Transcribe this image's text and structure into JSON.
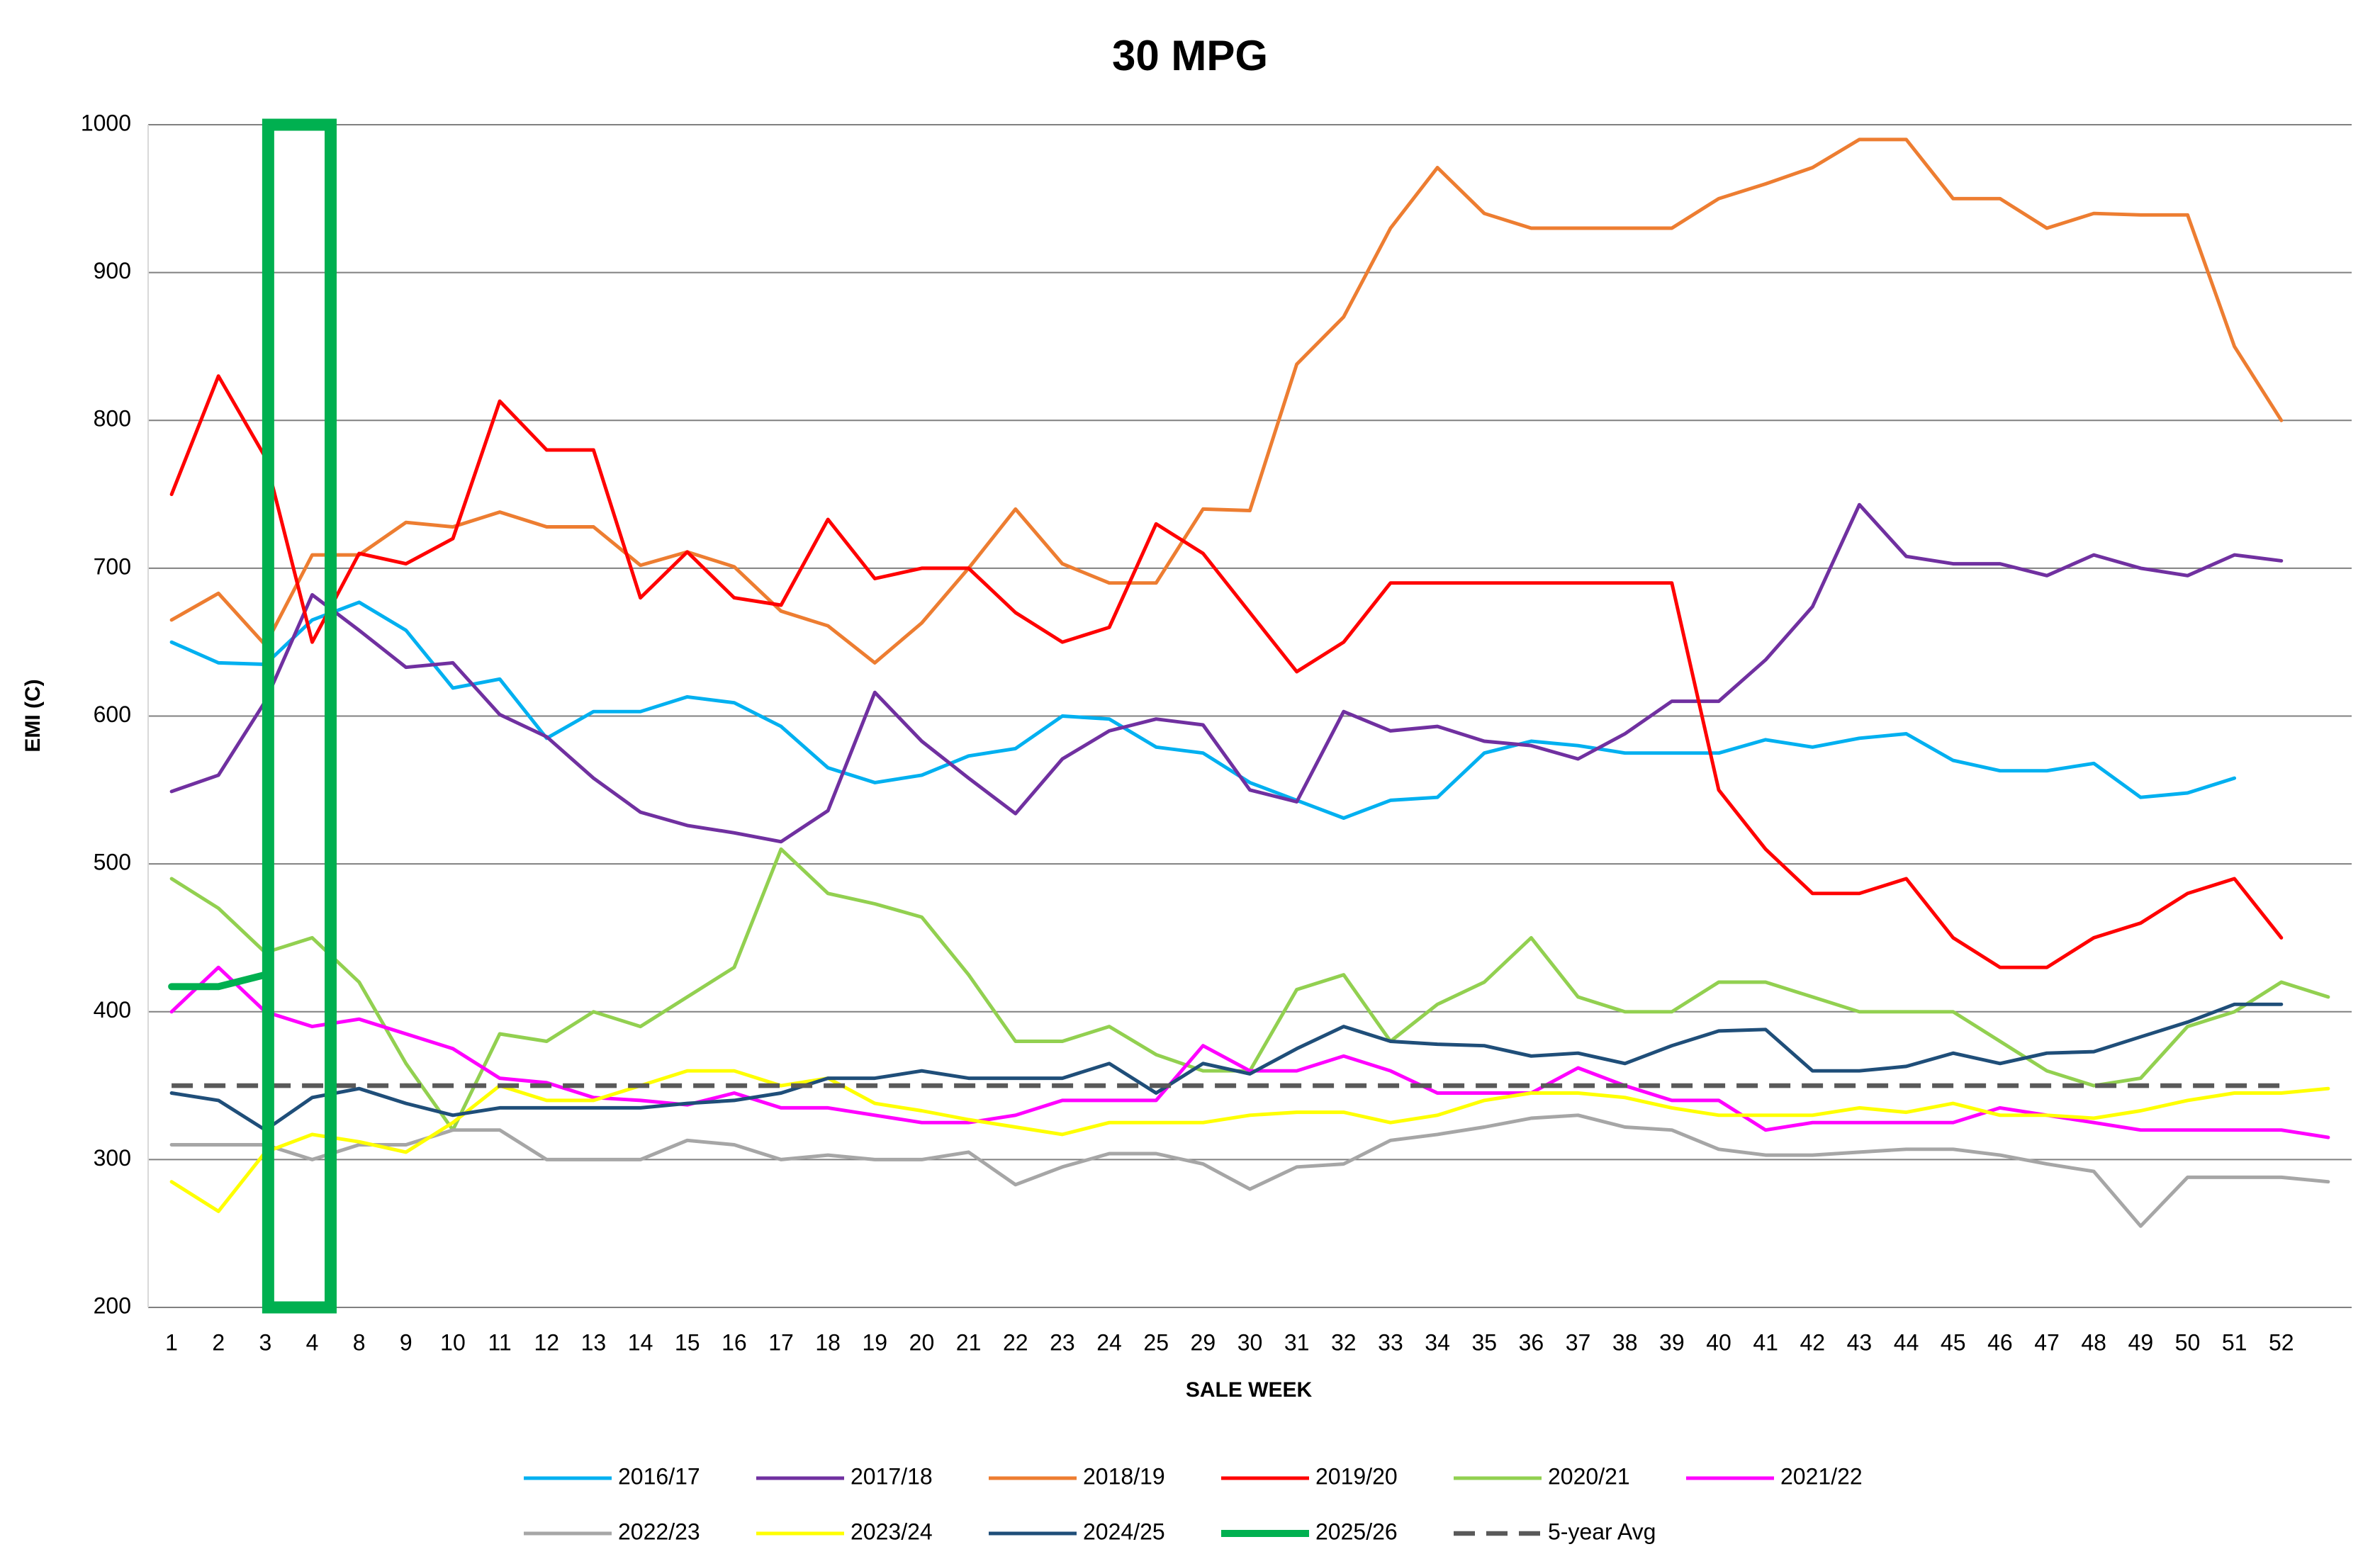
{
  "chart_data": {
    "type": "line",
    "title": "30 MPG",
    "x_label": "SALE WEEK",
    "y_label": "EMI (C)",
    "categories": [
      "1",
      "2",
      "3",
      "4",
      "8",
      "9",
      "10",
      "11",
      "12",
      "13",
      "14",
      "15",
      "16",
      "17",
      "18",
      "19",
      "20",
      "21",
      "22",
      "23",
      "24",
      "25",
      "29",
      "30",
      "31",
      "32",
      "33",
      "34",
      "35",
      "36",
      "37",
      "38",
      "39",
      "40",
      "41",
      "42",
      "43",
      "44",
      "45",
      "46",
      "47",
      "48",
      "49",
      "50",
      "51",
      "52",
      null
    ],
    "ylim": [
      200,
      1000
    ],
    "yticks": [
      200,
      300,
      400,
      500,
      600,
      700,
      800,
      900,
      1000
    ],
    "grid": true,
    "series": [
      {
        "name": "2016/17",
        "color": "#00b0f0",
        "values": [
          650,
          636,
          635,
          665,
          677,
          658,
          619,
          625,
          585,
          603,
          603,
          613,
          609,
          593,
          565,
          555,
          560,
          573,
          578,
          600,
          598,
          579,
          575,
          555,
          543,
          531,
          543,
          545,
          575,
          583,
          580,
          575,
          575,
          575,
          584,
          579,
          585,
          588,
          570,
          563,
          563,
          568,
          545,
          548,
          558,
          null,
          null
        ]
      },
      {
        "name": "2017/18",
        "color": "#7030a0",
        "values": [
          549,
          560,
          610,
          682,
          658,
          633,
          636,
          601,
          586,
          558,
          535,
          526,
          521,
          515,
          536,
          616,
          583,
          558,
          534,
          571,
          590,
          598,
          594,
          550,
          542,
          603,
          590,
          593,
          583,
          580,
          571,
          588,
          610,
          610,
          638,
          674,
          743,
          708,
          703,
          703,
          695,
          709,
          700,
          695,
          709,
          705,
          null
        ]
      },
      {
        "name": "2018/19",
        "color": "#ed7d31",
        "values": [
          665,
          683,
          648,
          709,
          709,
          731,
          728,
          738,
          728,
          728,
          702,
          711,
          701,
          671,
          661,
          636,
          663,
          700,
          740,
          703,
          690,
          690,
          740,
          739,
          838,
          870,
          930,
          971,
          940,
          930,
          930,
          930,
          930,
          950,
          960,
          971,
          990,
          990,
          950,
          950,
          930,
          940,
          939,
          939,
          850,
          800,
          null
        ]
      },
      {
        "name": "2019/20",
        "color": "#ff0000",
        "values": [
          750,
          830,
          775,
          650,
          710,
          703,
          720,
          813,
          780,
          780,
          680,
          711,
          680,
          675,
          733,
          693,
          700,
          700,
          670,
          650,
          660,
          730,
          710,
          670,
          630,
          650,
          690,
          690,
          690,
          690,
          690,
          690,
          690,
          550,
          510,
          480,
          480,
          490,
          450,
          430,
          430,
          450,
          460,
          480,
          490,
          450,
          null
        ]
      },
      {
        "name": "2020/21",
        "color": "#92d050",
        "values": [
          490,
          470,
          440,
          450,
          420,
          365,
          320,
          385,
          380,
          400,
          390,
          410,
          430,
          510,
          480,
          473,
          464,
          425,
          380,
          380,
          390,
          371,
          360,
          360,
          415,
          425,
          380,
          405,
          420,
          450,
          410,
          400,
          400,
          420,
          420,
          410,
          400,
          400,
          400,
          380,
          360,
          350,
          355,
          390,
          400,
          420,
          410
        ]
      },
      {
        "name": "2021/22",
        "color": "#ff00ff",
        "values": [
          400,
          430,
          400,
          390,
          395,
          385,
          375,
          355,
          352,
          342,
          340,
          337,
          345,
          335,
          335,
          330,
          325,
          325,
          330,
          340,
          340,
          340,
          377,
          360,
          360,
          370,
          360,
          345,
          345,
          345,
          362,
          350,
          340,
          340,
          320,
          325,
          325,
          325,
          325,
          335,
          330,
          325,
          320,
          320,
          320,
          320,
          315
        ]
      },
      {
        "name": "2022/23",
        "color": "#a6a6a6",
        "values": [
          310,
          310,
          310,
          300,
          310,
          310,
          320,
          320,
          300,
          300,
          300,
          313,
          310,
          300,
          303,
          300,
          300,
          305,
          283,
          295,
          304,
          304,
          297,
          280,
          295,
          297,
          313,
          317,
          322,
          328,
          330,
          322,
          320,
          307,
          303,
          303,
          305,
          307,
          307,
          303,
          297,
          292,
          255,
          288,
          288,
          288,
          285
        ]
      },
      {
        "name": "2023/24",
        "color": "#ffff00",
        "values": [
          285,
          265,
          305,
          317,
          312,
          305,
          325,
          350,
          340,
          340,
          350,
          360,
          360,
          350,
          355,
          338,
          333,
          327,
          322,
          317,
          325,
          325,
          325,
          330,
          332,
          332,
          325,
          330,
          340,
          345,
          345,
          342,
          335,
          330,
          330,
          330,
          335,
          332,
          338,
          330,
          330,
          328,
          333,
          340,
          345,
          345,
          348
        ]
      },
      {
        "name": "2024/25",
        "color": "#1f4e79",
        "values": [
          345,
          340,
          320,
          342,
          348,
          338,
          330,
          335,
          335,
          335,
          335,
          338,
          340,
          345,
          355,
          355,
          360,
          355,
          355,
          355,
          365,
          345,
          365,
          358,
          375,
          390,
          380,
          378,
          377,
          370,
          372,
          365,
          377,
          387,
          388,
          360,
          360,
          363,
          372,
          365,
          372,
          373,
          383,
          393,
          405,
          405,
          null
        ]
      },
      {
        "name": "2025/26",
        "color": "#00b050",
        "line_width": 3,
        "values": [
          417,
          417,
          425,
          null,
          null,
          null,
          null,
          null,
          null,
          null,
          null,
          null,
          null,
          null,
          null,
          null,
          null,
          null,
          null,
          null,
          null,
          null,
          null,
          null,
          null,
          null,
          null,
          null,
          null,
          null,
          null,
          null,
          null,
          null,
          null,
          null,
          null,
          null,
          null,
          null,
          null,
          null,
          null,
          null,
          null,
          null,
          null
        ]
      },
      {
        "name": "5-year Avg",
        "color": "#595959",
        "dashed": true,
        "line_width": 2,
        "values": [
          350,
          350,
          350,
          350,
          350,
          350,
          350,
          350,
          350,
          350,
          350,
          350,
          350,
          350,
          350,
          350,
          350,
          350,
          350,
          350,
          350,
          350,
          350,
          350,
          350,
          350,
          350,
          350,
          350,
          350,
          350,
          350,
          350,
          350,
          350,
          350,
          350,
          350,
          350,
          350,
          350,
          350,
          350,
          350,
          350,
          350,
          null
        ]
      }
    ]
  }
}
